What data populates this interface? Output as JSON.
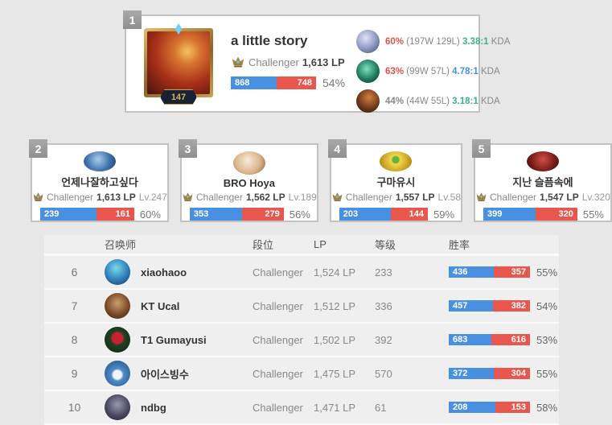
{
  "colors": {
    "win_blue": "#4a90e2",
    "loss_red": "#e8564e",
    "winrate_red": "#d85450",
    "kda_green": "#3fae8c",
    "kda_blue": "#4a90e2",
    "muted_gray": "#888888"
  },
  "top_player": {
    "rank": "1",
    "summoner_level": "147",
    "name": "a little story",
    "tier": "Challenger",
    "lp": "1,613 LP",
    "wins": "868",
    "losses": "748",
    "winrate": "54%",
    "champions": [
      {
        "winrate": "60%",
        "winrate_color": "#d85450",
        "record": "(197W 129L)",
        "kda": "3.38:1",
        "kda_color": "#3fae8c",
        "kda_label": "KDA"
      },
      {
        "winrate": "63%",
        "winrate_color": "#d85450",
        "record": "(99W 57L)",
        "kda": "4.78:1",
        "kda_color": "#4a90e2",
        "kda_label": "KDA"
      },
      {
        "winrate": "44%",
        "winrate_color": "#888888",
        "record": "(44W 55L)",
        "kda": "3.18:1",
        "kda_color": "#3fae8c",
        "kda_label": "KDA"
      }
    ]
  },
  "cards": [
    {
      "rank": "2",
      "name": "언제나잘하고싶다",
      "tier": "Challenger",
      "lp": "1,613 LP",
      "level": "Lv.247",
      "wins": "239",
      "losses": "161",
      "winrate": "60%"
    },
    {
      "rank": "3",
      "name": "BRO Hoya",
      "tier": "Challenger",
      "lp": "1,562 LP",
      "level": "Lv.189",
      "wins": "353",
      "losses": "279",
      "winrate": "56%"
    },
    {
      "rank": "4",
      "name": "구마유시",
      "tier": "Challenger",
      "lp": "1,557 LP",
      "level": "Lv.58",
      "wins": "203",
      "losses": "144",
      "winrate": "59%"
    },
    {
      "rank": "5",
      "name": "지난 슬픔속에",
      "tier": "Challenger",
      "lp": "1,547 LP",
      "level": "Lv.320",
      "wins": "399",
      "losses": "320",
      "winrate": "55%"
    }
  ],
  "table": {
    "headers": {
      "summoner": "召唤师",
      "tier": "段位",
      "lp": "LP",
      "level": "等级",
      "winrate": "胜率"
    },
    "rows": [
      {
        "rank": "6",
        "name": "xiaohaoo",
        "tier": "Challenger",
        "lp": "1,524 LP",
        "level": "233",
        "wins": "436",
        "losses": "357",
        "winrate": "55%"
      },
      {
        "rank": "7",
        "name": "KT Ucal",
        "tier": "Challenger",
        "lp": "1,512 LP",
        "level": "336",
        "wins": "457",
        "losses": "382",
        "winrate": "54%"
      },
      {
        "rank": "8",
        "name": "T1 Gumayusi",
        "tier": "Challenger",
        "lp": "1,502 LP",
        "level": "392",
        "wins": "683",
        "losses": "616",
        "winrate": "53%"
      },
      {
        "rank": "9",
        "name": "아이스빙수",
        "tier": "Challenger",
        "lp": "1,475 LP",
        "level": "570",
        "wins": "372",
        "losses": "304",
        "winrate": "55%"
      },
      {
        "rank": "10",
        "name": "ndbg",
        "tier": "Challenger",
        "lp": "1,471 LP",
        "level": "61",
        "wins": "208",
        "losses": "153",
        "winrate": "58%"
      }
    ]
  }
}
